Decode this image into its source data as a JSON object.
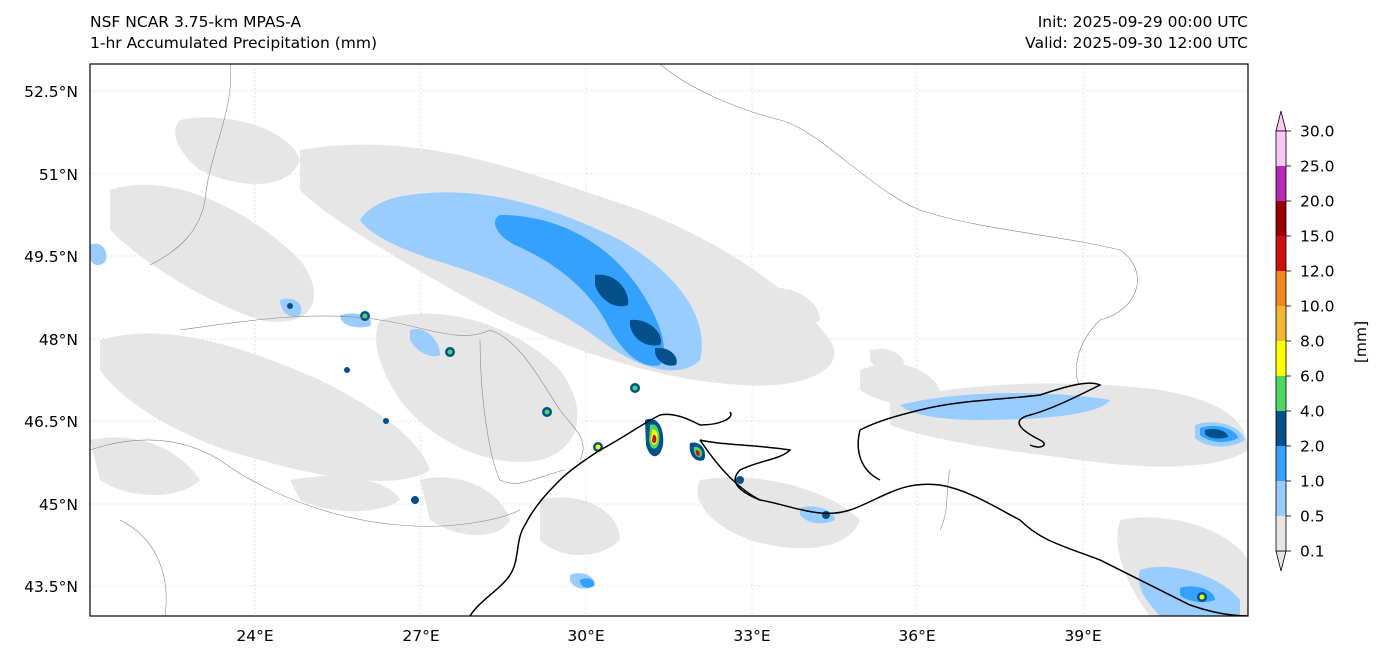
{
  "header": {
    "model": "NSF NCAR 3.75-km MPAS-A",
    "field": "1-hr Accumulated Precipitation (mm)",
    "init": "Init: 2025-09-29 00:00 UTC",
    "valid": "Valid: 2025-09-30 12:00 UTC"
  },
  "map": {
    "lat_labels": [
      "52.5°N",
      "51°N",
      "49.5°N",
      "48°N",
      "46.5°N",
      "45°N",
      "43.5°N"
    ],
    "lon_labels": [
      "24°E",
      "27°E",
      "30°E",
      "33°E",
      "36°E",
      "39°E"
    ]
  },
  "colorbar": {
    "unit_label": "[mm]",
    "levels": [
      "0.1",
      "0.5",
      "1.0",
      "2.0",
      "4.0",
      "6.0",
      "8.0",
      "10.0",
      "12.0",
      "15.0",
      "20.0",
      "25.0",
      "30.0"
    ],
    "colors": [
      "#e6e6e6",
      "#99ccff",
      "#33a1fd",
      "#03508a",
      "#4cd964",
      "#ffff00",
      "#f5b731",
      "#ee8a1f",
      "#cc1111",
      "#990000",
      "#b52bb5",
      "#fbc8f8"
    ]
  }
}
